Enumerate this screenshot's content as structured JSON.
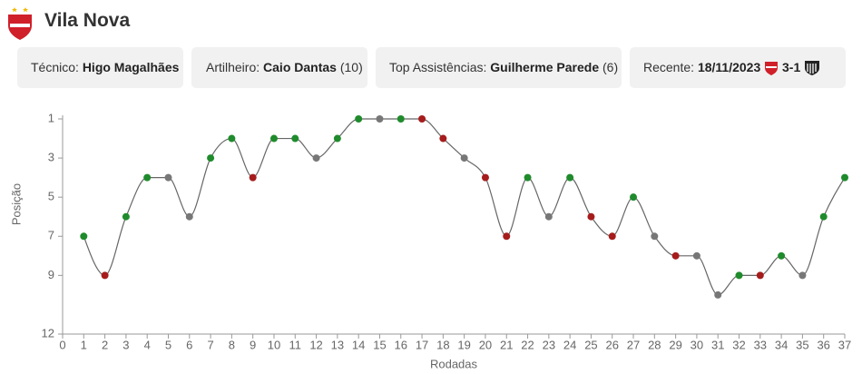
{
  "header": {
    "title": "Vila Nova"
  },
  "cards": [
    {
      "label": "Técnico:",
      "value": "Higo Magalhães"
    },
    {
      "label": "Artilheiro:",
      "value": "Caio Dantas",
      "extra": "(10)"
    },
    {
      "label": "Top Assistências:",
      "value": "Guilherme Parede",
      "extra": "(6)"
    },
    {
      "label": "Recente:",
      "value": "18/11/2023",
      "score": "3-1"
    }
  ],
  "chart_data": {
    "type": "line",
    "x_label": "Rodadas",
    "y_label": "Posição",
    "x": [
      1,
      2,
      3,
      4,
      5,
      6,
      7,
      8,
      9,
      10,
      11,
      12,
      13,
      14,
      15,
      16,
      17,
      18,
      19,
      20,
      21,
      22,
      23,
      24,
      25,
      26,
      27,
      28,
      29,
      30,
      31,
      32,
      33,
      34,
      35,
      36,
      37
    ],
    "values": [
      7,
      9,
      6,
      4,
      4,
      6,
      3,
      2,
      4,
      2,
      2,
      3,
      2,
      1,
      1,
      1,
      1,
      2,
      3,
      4,
      7,
      4,
      6,
      4,
      6,
      7,
      5,
      7,
      8,
      8,
      10,
      9,
      9,
      8,
      9,
      6,
      4
    ],
    "point_colors": [
      "#1f8b2c",
      "#a61c1c",
      "#1f8b2c",
      "#1f8b2c",
      "#777777",
      "#777777",
      "#1f8b2c",
      "#1f8b2c",
      "#a61c1c",
      "#1f8b2c",
      "#1f8b2c",
      "#777777",
      "#1f8b2c",
      "#1f8b2c",
      "#777777",
      "#1f8b2c",
      "#a61c1c",
      "#a61c1c",
      "#777777",
      "#a61c1c",
      "#a61c1c",
      "#1f8b2c",
      "#777777",
      "#1f8b2c",
      "#a61c1c",
      "#a61c1c",
      "#1f8b2c",
      "#777777",
      "#a61c1c",
      "#777777",
      "#777777",
      "#1f8b2c",
      "#a61c1c",
      "#1f8b2c",
      "#777777",
      "#1f8b2c",
      "#1f8b2c"
    ],
    "line_color": "#666666",
    "xlim": [
      0,
      37
    ],
    "xticks": [
      0,
      1,
      2,
      3,
      4,
      5,
      6,
      7,
      8,
      9,
      10,
      11,
      12,
      13,
      14,
      15,
      16,
      17,
      18,
      19,
      20,
      21,
      22,
      23,
      24,
      25,
      26,
      27,
      28,
      29,
      30,
      31,
      32,
      33,
      34,
      35,
      36,
      37
    ],
    "ylim": [
      1,
      12
    ],
    "yticks": [
      1,
      3,
      5,
      7,
      9,
      12
    ],
    "y_inverted": true
  }
}
